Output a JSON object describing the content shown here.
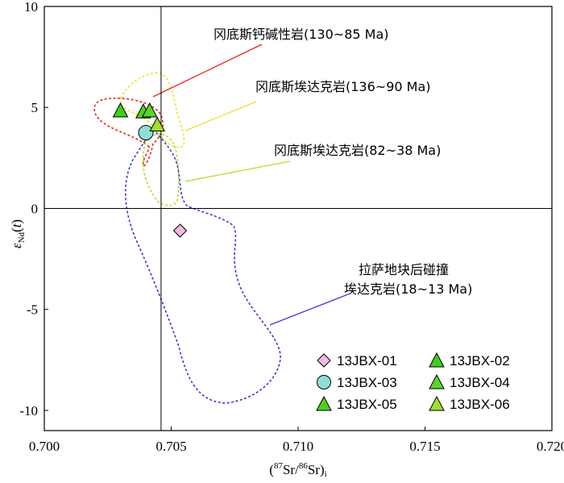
{
  "chart_data": {
    "type": "scatter",
    "title": "",
    "xlabel": {
      "open": "(",
      "sup1": "87",
      "iso1": "Sr",
      "slash": "/",
      "sup2": "86",
      "iso2": "Sr",
      "close": ")",
      "subscript": "i"
    },
    "ylabel": {
      "symbol": "ε",
      "subscript": "Nd",
      "open": "(",
      "variable": "t",
      "close": ")"
    },
    "xlim": [
      0.7,
      0.72
    ],
    "ylim": [
      -11,
      10
    ],
    "xticks": [
      "0.700",
      "0.705",
      "0.710",
      "0.715",
      "0.720"
    ],
    "yticks": [
      "10",
      "5",
      "0",
      "-5",
      "-10"
    ],
    "grid": false,
    "legend_position": "bottom-right",
    "reference_lines": {
      "x": 0.7046,
      "y": 0
    },
    "series": [
      {
        "name": "13JBX-01",
        "marker": "diamond",
        "color": "#f3b8df",
        "x": [
          0.70535
        ],
        "y": [
          -1.1
        ]
      },
      {
        "name": "13JBX-02",
        "marker": "triangle",
        "color": "#3fce1b",
        "x": [
          0.703
        ],
        "y": [
          4.85
        ]
      },
      {
        "name": "13JBX-03",
        "marker": "circle",
        "color": "#8fdfd6",
        "x": [
          0.704
        ],
        "y": [
          3.75
        ]
      },
      {
        "name": "13JBX-04",
        "marker": "triangle",
        "color": "#5bd52a",
        "x": [
          0.70415
        ],
        "y": [
          4.85
        ]
      },
      {
        "name": "13JBX-05",
        "marker": "triangle",
        "color": "#4fd020",
        "x": [
          0.7039
        ],
        "y": [
          4.8
        ]
      },
      {
        "name": "13JBX-06",
        "marker": "triangle",
        "color": "#9ee02c",
        "x": [
          0.70445
        ],
        "y": [
          4.15
        ]
      }
    ],
    "annotations": [
      {
        "text": "冈底斯钙碱性岩(130~85 Ma)",
        "color": "#e8241b"
      },
      {
        "text": "冈底斯埃达克岩(136~90 Ma)",
        "color": "#efe12a"
      },
      {
        "text": "冈底斯埃达克岩(82~38 Ma)",
        "color": "#a9e22b"
      },
      {
        "text": "拉萨地块后碰撞",
        "color": "#4136d4"
      },
      {
        "text": "埃达克岩(18~13 Ma)",
        "color": "#4136d4"
      }
    ]
  }
}
